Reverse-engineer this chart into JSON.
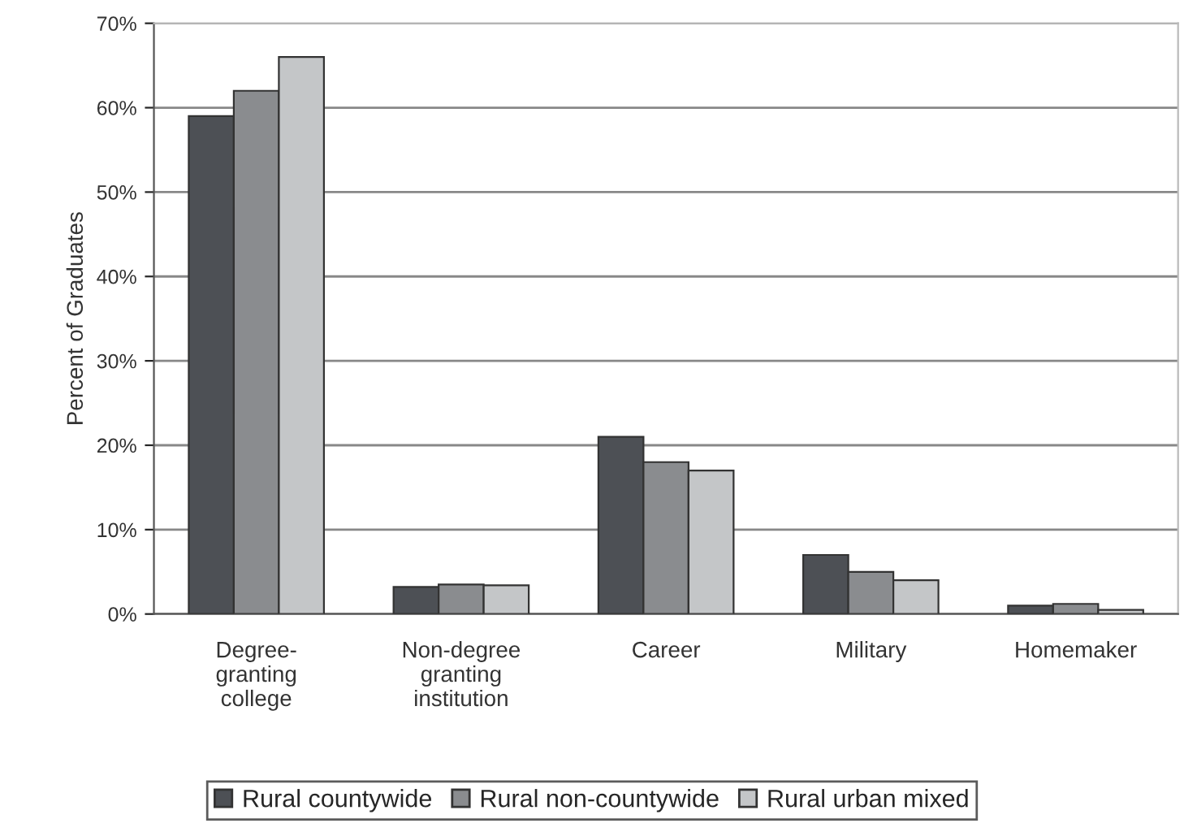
{
  "chart_data": {
    "type": "bar",
    "ylabel": "Percent of Graduates",
    "categories": [
      "Degree-\ngranting\ncollege",
      "Non-degree\ngranting\ninstitution",
      "Career",
      "Military",
      "Homemaker"
    ],
    "series": [
      {
        "name": "Rural countywide",
        "color": "#4d5055",
        "values": [
          59,
          3.2,
          21,
          7,
          1
        ]
      },
      {
        "name": "Rural non-countywide",
        "color": "#8a8c8f",
        "values": [
          62,
          3.5,
          18,
          5,
          1.2
        ]
      },
      {
        "name": "Rural urban mixed",
        "color": "#c4c6c8",
        "values": [
          66,
          3.4,
          17,
          4,
          0.5
        ]
      }
    ],
    "ylim": [
      0,
      70
    ],
    "yticks": [
      {
        "value": 0,
        "label": "0%"
      },
      {
        "value": 10,
        "label": "10%"
      },
      {
        "value": 20,
        "label": "20%"
      },
      {
        "value": 30,
        "label": "30%"
      },
      {
        "value": 40,
        "label": "40%"
      },
      {
        "value": 50,
        "label": "50%"
      },
      {
        "value": 60,
        "label": "60%"
      },
      {
        "value": 70,
        "label": "70%"
      }
    ],
    "grid": "y",
    "legend": "bottom"
  }
}
